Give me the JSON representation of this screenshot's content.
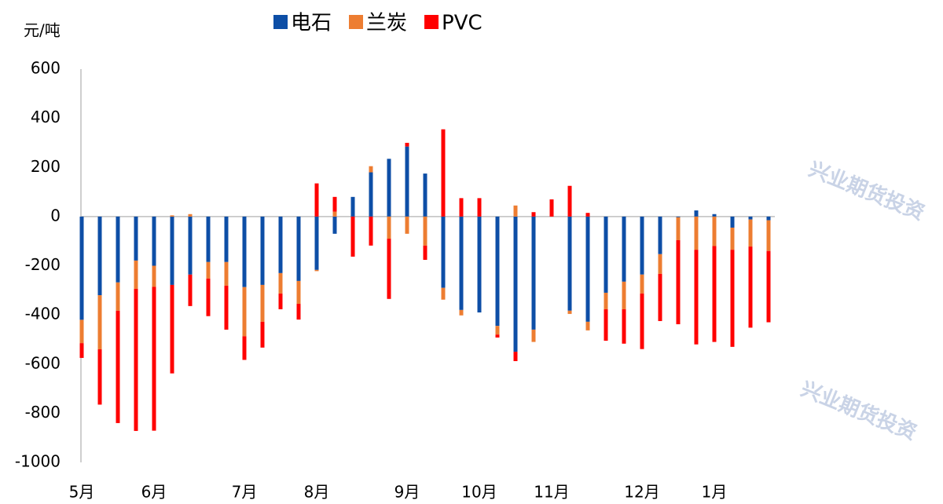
{
  "chart_data": {
    "type": "bar",
    "stacked": true,
    "y_label": "元/吨",
    "watermark": "兴业期货投资",
    "categories": [
      "5月",
      null,
      null,
      null,
      "6月",
      null,
      null,
      null,
      null,
      "7月",
      null,
      null,
      null,
      "8月",
      null,
      null,
      null,
      null,
      "9月",
      null,
      null,
      null,
      "10月",
      null,
      null,
      null,
      "11月",
      null,
      null,
      null,
      null,
      "12月",
      null,
      null,
      null,
      "1月",
      null,
      null,
      null
    ],
    "series": [
      {
        "name": "电石",
        "color": "#0d4ea6",
        "values": [
          -420,
          -320,
          -268,
          -179,
          -200,
          -278,
          -236,
          -185,
          -185,
          -287,
          -278,
          -230,
          -262,
          -217,
          -70,
          80,
          180,
          235,
          285,
          175,
          -290,
          -380,
          -390,
          -445,
          -550,
          -460,
          0,
          -383,
          -428,
          -310,
          -265,
          -236,
          -153,
          -3,
          25,
          10,
          -45,
          -12,
          -15
        ]
      },
      {
        "name": "兰炭",
        "color": "#ed7d31",
        "values": [
          -95,
          -220,
          -115,
          -115,
          -86,
          5,
          10,
          -67,
          -96,
          -200,
          -150,
          -83,
          -93,
          -5,
          20,
          0,
          25,
          -90,
          -70,
          -118,
          -48,
          -22,
          0,
          -35,
          45,
          -50,
          0,
          -13,
          -35,
          -67,
          -112,
          -77,
          -80,
          -93,
          -135,
          -120,
          -90,
          -110,
          -125
        ]
      },
      {
        "name": "PVC",
        "color": "#ff0000",
        "values": [
          -60,
          -225,
          -457,
          -578,
          -585,
          -360,
          -128,
          -153,
          -179,
          -96,
          -105,
          -64,
          -64,
          135,
          60,
          -163,
          -118,
          -245,
          15,
          -58,
          355,
          75,
          75,
          -12,
          -38,
          18,
          70,
          125,
          15,
          -128,
          -140,
          -226,
          -192,
          -342,
          -385,
          -390,
          -395,
          -330,
          -290
        ]
      }
    ],
    "ylim": [
      -1000,
      600
    ],
    "yticks": [
      -1000,
      -800,
      -600,
      -400,
      -200,
      0,
      200,
      400,
      600
    ],
    "grid": false
  }
}
